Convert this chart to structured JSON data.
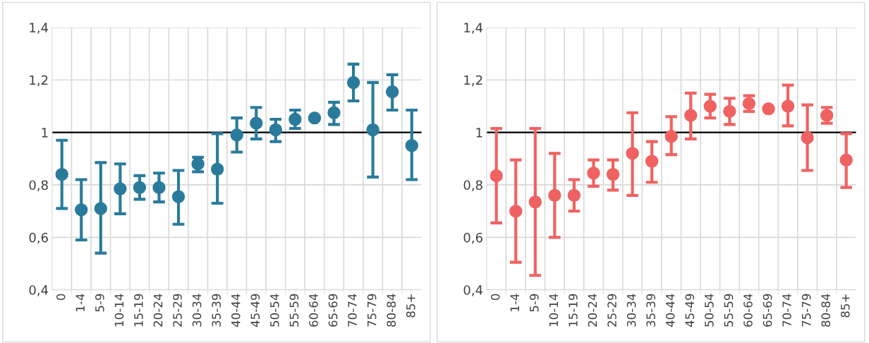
{
  "chart_data": [
    {
      "type": "scatter",
      "categories": [
        "0",
        "1-4",
        "5-9",
        "10-14",
        "15-19",
        "20-24",
        "25-29",
        "30-34",
        "35-39",
        "40-44",
        "45-49",
        "50-54",
        "55-59",
        "60-64",
        "65-69",
        "70-74",
        "75-79",
        "80-84",
        "85+"
      ],
      "series": [
        {
          "color": "#2a7b9b",
          "values": [
            0.84,
            0.705,
            0.71,
            0.785,
            0.79,
            0.79,
            0.755,
            0.88,
            0.86,
            0.99,
            1.035,
            1.01,
            1.05,
            1.055,
            1.075,
            1.19,
            1.01,
            1.155,
            0.95
          ],
          "errors": [
            [
              0.71,
              0.97
            ],
            [
              0.59,
              0.82
            ],
            [
              0.54,
              0.885
            ],
            [
              0.69,
              0.88
            ],
            [
              0.745,
              0.835
            ],
            [
              0.735,
              0.845
            ],
            [
              0.65,
              0.855
            ],
            [
              0.85,
              0.905
            ],
            [
              0.73,
              0.995
            ],
            [
              0.925,
              1.055
            ],
            [
              0.975,
              1.095
            ],
            [
              0.965,
              1.05
            ],
            [
              1.015,
              1.085
            ],
            null,
            [
              1.03,
              1.115
            ],
            [
              1.12,
              1.26
            ],
            [
              0.83,
              1.19
            ],
            [
              1.085,
              1.22
            ],
            [
              0.82,
              1.085
            ]
          ]
        }
      ],
      "ylim": [
        0.4,
        1.4
      ],
      "yticks": [
        {
          "value": 0.4,
          "label": "0,4"
        },
        {
          "value": 0.6,
          "label": "0,6"
        },
        {
          "value": 0.8,
          "label": "0,8"
        },
        {
          "value": 1,
          "label": "1"
        },
        {
          "value": 1.2,
          "label": "1,2"
        },
        {
          "value": 1.4,
          "label": "1,4"
        }
      ],
      "ref_lines": [
        {
          "axis": "y",
          "value": 1,
          "color": "#000000"
        }
      ],
      "grid": true,
      "marker": "circle"
    },
    {
      "type": "scatter",
      "categories": [
        "0",
        "1-4",
        "5-9",
        "10-14",
        "15-19",
        "20-24",
        "25-29",
        "30-34",
        "35-39",
        "40-44",
        "45-49",
        "50-54",
        "55-59",
        "60-64",
        "65-69",
        "70-74",
        "75-79",
        "80-84",
        "85+"
      ],
      "series": [
        {
          "color": "#f06262",
          "values": [
            0.835,
            0.7,
            0.735,
            0.76,
            0.76,
            0.845,
            0.84,
            0.92,
            0.89,
            0.985,
            1.065,
            1.1,
            1.08,
            1.11,
            1.09,
            1.1,
            0.98,
            1.065,
            0.895
          ],
          "errors": [
            [
              0.655,
              1.015
            ],
            [
              0.505,
              0.895
            ],
            [
              0.455,
              1.015
            ],
            [
              0.6,
              0.92
            ],
            [
              0.7,
              0.82
            ],
            [
              0.795,
              0.895
            ],
            [
              0.78,
              0.895
            ],
            [
              0.76,
              1.075
            ],
            [
              0.81,
              0.965
            ],
            [
              0.915,
              1.06
            ],
            [
              0.975,
              1.15
            ],
            [
              1.055,
              1.145
            ],
            [
              1.03,
              1.13
            ],
            [
              1.08,
              1.14
            ],
            null,
            [
              1.025,
              1.18
            ],
            [
              0.855,
              1.105
            ],
            [
              1.035,
              1.095
            ],
            [
              0.79,
              0.995
            ]
          ]
        }
      ],
      "ylim": [
        0.4,
        1.4
      ],
      "yticks": [
        {
          "value": 0.4,
          "label": "0,4"
        },
        {
          "value": 0.6,
          "label": "0,6"
        },
        {
          "value": 0.8,
          "label": "0,8"
        },
        {
          "value": 1,
          "label": "1"
        },
        {
          "value": 1.2,
          "label": "1,2"
        },
        {
          "value": 1.4,
          "label": "1,4"
        }
      ],
      "ref_lines": [
        {
          "axis": "y",
          "value": 1,
          "color": "#000000"
        }
      ],
      "grid": true,
      "marker": "circle"
    }
  ]
}
